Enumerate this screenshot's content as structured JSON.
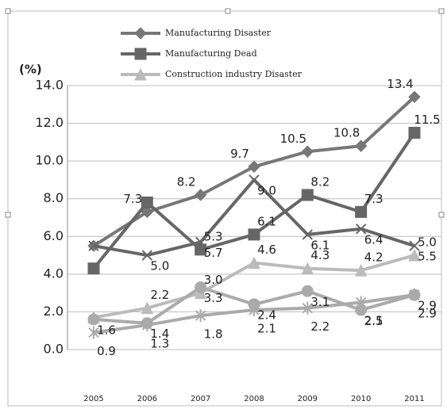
{
  "chart_data": {
    "type": "line",
    "y_axis_label": "(%)",
    "categories": [
      "2005",
      "2006",
      "2007",
      "2008",
      "2009",
      "2010",
      "2011"
    ],
    "ylim": [
      0,
      14
    ],
    "yticks": [
      {
        "value": 0,
        "label": "0.0"
      },
      {
        "value": 2,
        "label": "2.0"
      },
      {
        "value": 4,
        "label": "4.0"
      },
      {
        "value": 6,
        "label": "6.0"
      },
      {
        "value": 8,
        "label": "8.0"
      },
      {
        "value": 10,
        "label": "10.0"
      },
      {
        "value": 12,
        "label": "12.0"
      },
      {
        "value": 14,
        "label": "14.0"
      }
    ],
    "grid": true,
    "series": [
      {
        "name": "Manufacturing Disaster",
        "color": "#777777",
        "marker": "diamond",
        "values": [
          5.5,
          7.3,
          8.2,
          9.7,
          10.5,
          10.8,
          13.4
        ],
        "value_labels": [
          null,
          "7.3",
          "8.2",
          "9.7",
          "10.5",
          "10.8",
          "13.4"
        ]
      },
      {
        "name": "Manufacturing Dead",
        "color": "#666666",
        "marker": "square",
        "values": [
          4.3,
          7.8,
          5.3,
          6.1,
          8.2,
          7.3,
          11.5
        ],
        "value_labels": [
          null,
          null,
          "5.3",
          "6.1",
          "8.2",
          "7.3",
          "11.5"
        ]
      },
      {
        "name": "Construction industry Disaster",
        "color": "#bbbbbb",
        "marker": "triangle",
        "values": [
          1.7,
          2.2,
          3.0,
          4.6,
          4.3,
          4.2,
          5.0
        ],
        "value_labels": [
          null,
          "2.2",
          "3.0",
          "4.6",
          "4.3",
          "4.2",
          "5.0"
        ]
      },
      {
        "color": "#666666",
        "marker": "x",
        "values": [
          5.5,
          5.0,
          5.7,
          9.0,
          6.1,
          6.4,
          5.5
        ],
        "value_labels": [
          null,
          "5.0",
          "5.7",
          "9.0",
          "6.1",
          "6.4",
          "5.5"
        ]
      },
      {
        "color": "#aaaaaa",
        "marker": "circle",
        "values": [
          1.6,
          1.4,
          3.3,
          2.4,
          3.1,
          2.1,
          2.9
        ],
        "value_labels": [
          "1.6",
          "1.4",
          "3.3",
          "2.4",
          "3.1",
          "2.1",
          "2.9"
        ]
      },
      {
        "color": "#aaaaaa",
        "marker": "star",
        "values": [
          0.9,
          1.3,
          1.8,
          2.1,
          2.2,
          2.5,
          2.9
        ],
        "value_labels": [
          "0.9",
          "1.3",
          "1.8",
          "2.1",
          "2.2",
          "2.5",
          "2.9"
        ]
      }
    ]
  }
}
